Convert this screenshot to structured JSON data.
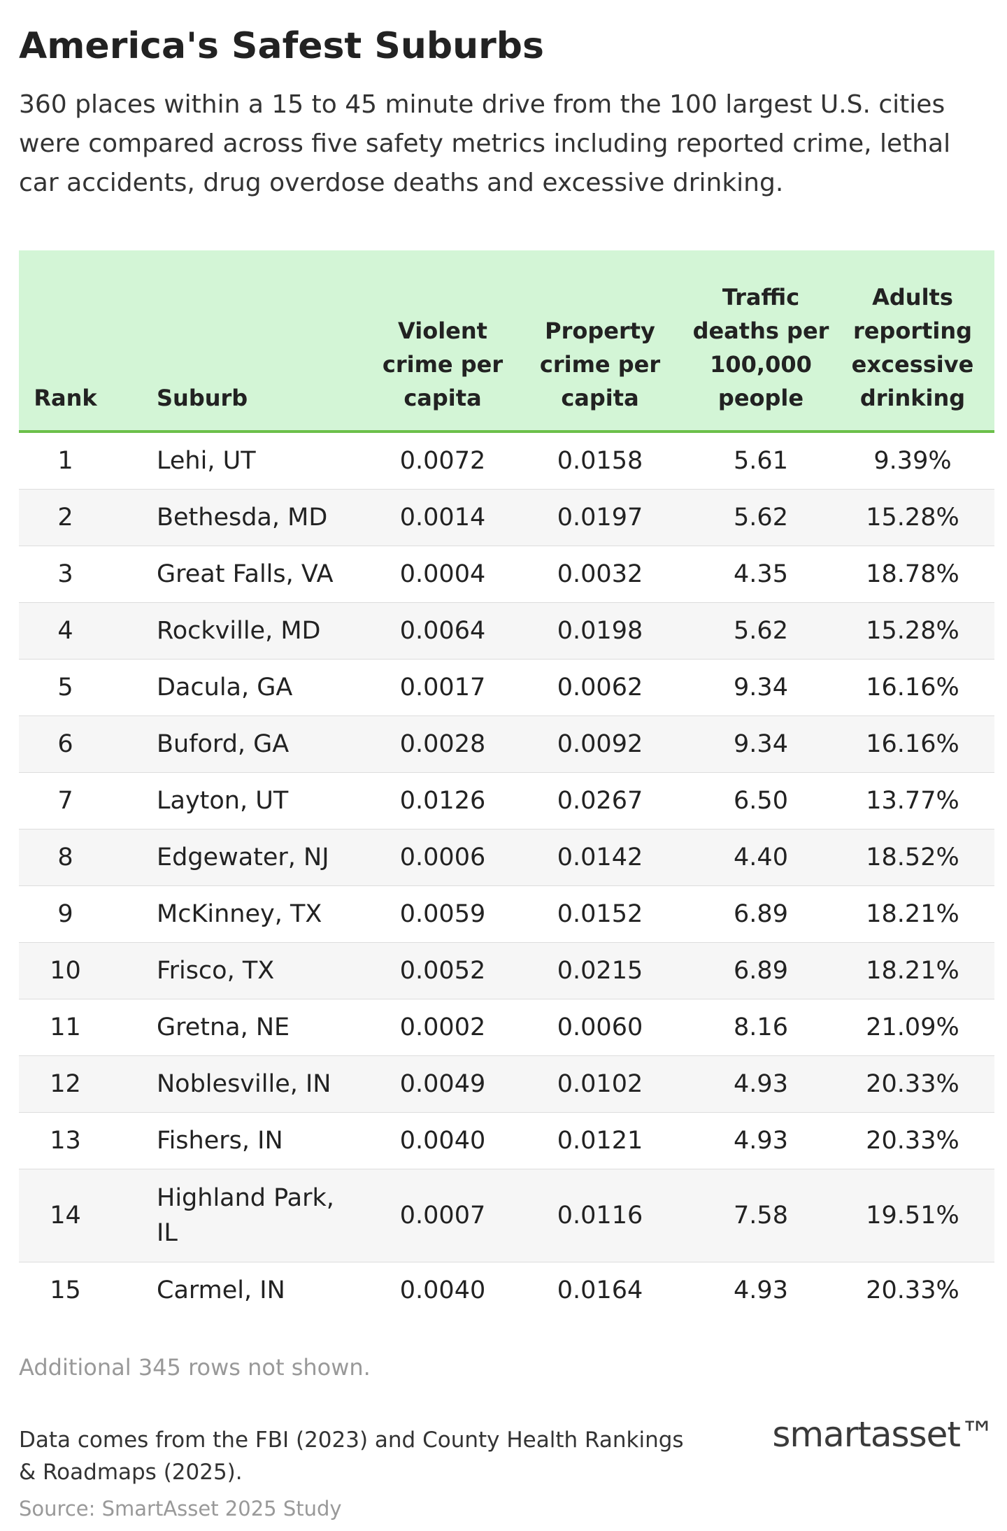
{
  "header": {
    "title": "America's Safest Suburbs",
    "subtitle": "360 places within a 15 to 45 minute drive from the 100 largest U.S. cities were compared across five safety metrics including reported crime, lethal car accidents, drug overdose deaths and excessive drinking."
  },
  "table": {
    "columns": [
      "Rank",
      "Suburb",
      "Violent crime per capita",
      "Property crime per capita",
      "Traffic deaths per 100,000 people",
      "Adults reporting excessive drinking"
    ],
    "rows": [
      [
        "1",
        "Lehi, UT",
        "0.0072",
        "0.0158",
        "5.61",
        "9.39%"
      ],
      [
        "2",
        "Bethesda, MD",
        "0.0014",
        "0.0197",
        "5.62",
        "15.28%"
      ],
      [
        "3",
        "Great Falls, VA",
        "0.0004",
        "0.0032",
        "4.35",
        "18.78%"
      ],
      [
        "4",
        "Rockville, MD",
        "0.0064",
        "0.0198",
        "5.62",
        "15.28%"
      ],
      [
        "5",
        "Dacula, GA",
        "0.0017",
        "0.0062",
        "9.34",
        "16.16%"
      ],
      [
        "6",
        "Buford, GA",
        "0.0028",
        "0.0092",
        "9.34",
        "16.16%"
      ],
      [
        "7",
        "Layton, UT",
        "0.0126",
        "0.0267",
        "6.50",
        "13.77%"
      ],
      [
        "8",
        "Edgewater, NJ",
        "0.0006",
        "0.0142",
        "4.40",
        "18.52%"
      ],
      [
        "9",
        "McKinney, TX",
        "0.0059",
        "0.0152",
        "6.89",
        "18.21%"
      ],
      [
        "10",
        "Frisco, TX",
        "0.0052",
        "0.0215",
        "6.89",
        "18.21%"
      ],
      [
        "11",
        "Gretna, NE",
        "0.0002",
        "0.0060",
        "8.16",
        "21.09%"
      ],
      [
        "12",
        "Noblesville, IN",
        "0.0049",
        "0.0102",
        "4.93",
        "20.33%"
      ],
      [
        "13",
        "Fishers, IN",
        "0.0040",
        "0.0121",
        "4.93",
        "20.33%"
      ],
      [
        "14",
        "Highland Park, IL",
        "0.0007",
        "0.0116",
        "7.58",
        "19.51%"
      ],
      [
        "15",
        "Carmel, IN",
        "0.0040",
        "0.0164",
        "4.93",
        "20.33%"
      ]
    ],
    "note": "Additional 345 rows not shown."
  },
  "footer": {
    "notes": "Data comes from the FBI (2023) and County Health Rankings & Roadmaps (2025).",
    "source": "Source: SmartAsset 2025 Study",
    "logo": "smartasset™"
  }
}
